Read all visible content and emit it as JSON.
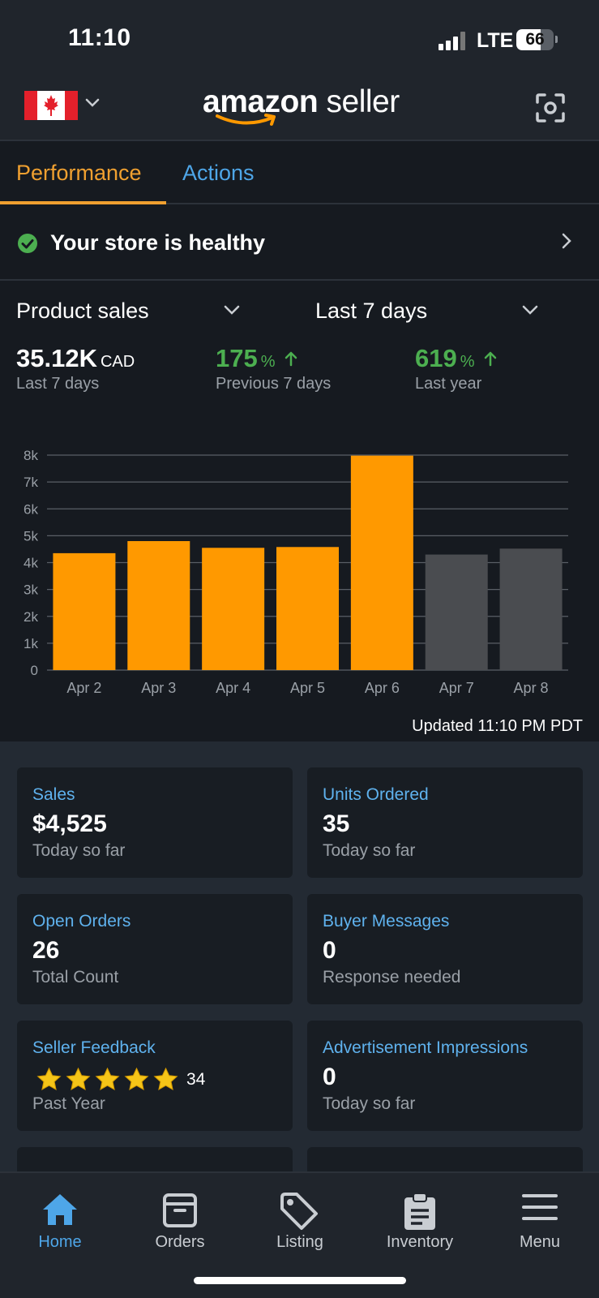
{
  "status_bar": {
    "time": "11:10",
    "network": "LTE",
    "battery": "66",
    "battery_level": 0.66
  },
  "header": {
    "brand_amazon": "amazon",
    "brand_seller": " seller",
    "country": "Canada",
    "icons": {
      "flag": "canada-flag-icon",
      "dropdown": "chevron-down-icon",
      "scan": "scan-icon"
    }
  },
  "tabs": [
    {
      "label": "Performance",
      "active": true
    },
    {
      "label": "Actions",
      "active": false
    }
  ],
  "health": {
    "text": "Your store is healthy"
  },
  "sales": {
    "metric": "Product sales",
    "range": "Last 7 days",
    "total": "35.12K",
    "currency": "CAD",
    "total_caption": "Last 7 days",
    "prev_change": "175",
    "prev_caption": "Previous 7 days",
    "year_change": "619",
    "year_caption": "Last year",
    "pct_symbol": "%"
  },
  "chart_data": {
    "type": "bar",
    "categories": [
      "Apr 2",
      "Apr 3",
      "Apr 4",
      "Apr 5",
      "Apr 6",
      "Apr 7",
      "Apr 8"
    ],
    "values": [
      4350,
      4800,
      4550,
      4580,
      7980,
      4300,
      4520
    ],
    "highlighted": [
      true,
      true,
      true,
      true,
      true,
      false,
      false
    ],
    "colors": {
      "highlight": "#ff9900",
      "muted": "#4a4c50",
      "grid": "#5a5f66",
      "tick": "#9aa0a7"
    },
    "y_ticks": [
      "0",
      "1k",
      "2k",
      "3k",
      "4k",
      "5k",
      "6k",
      "7k",
      "8k"
    ],
    "ylim": [
      0,
      8000
    ],
    "grid": true
  },
  "updated": "Updated 11:10 PM PDT",
  "cards": [
    {
      "title": "Sales",
      "value": "$4,525",
      "sub": "Today so far"
    },
    {
      "title": "Units Ordered",
      "value": "35",
      "sub": "Today so far"
    },
    {
      "title": "Open Orders",
      "value": "26",
      "sub": "Total Count"
    },
    {
      "title": "Buyer Messages",
      "value": "0",
      "sub": "Response needed"
    },
    {
      "title": "Seller Feedback",
      "rating": 5,
      "count": "34",
      "sub": "Past Year"
    },
    {
      "title": "Advertisement Impressions",
      "value": "0",
      "sub": "Today so far"
    }
  ],
  "nav": [
    {
      "label": "Home",
      "icon": "home-icon",
      "active": true
    },
    {
      "label": "Orders",
      "icon": "orders-box-icon",
      "active": false
    },
    {
      "label": "Listing",
      "icon": "tag-icon",
      "active": false
    },
    {
      "label": "Inventory",
      "icon": "clipboard-icon",
      "active": false
    },
    {
      "label": "Menu",
      "icon": "hamburger-menu-icon",
      "active": false
    }
  ],
  "theme": {
    "accent_orange": "#f0a030",
    "accent_blue": "#4ea6e8",
    "success_green": "#4caf50"
  }
}
